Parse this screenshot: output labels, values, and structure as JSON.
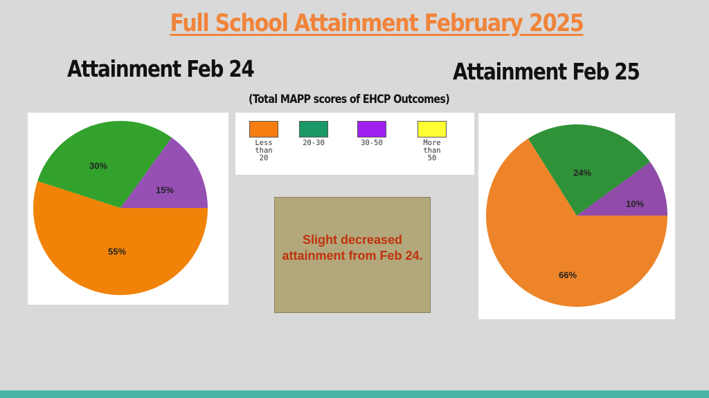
{
  "title": "Full School Attainment February 2025",
  "note": "(Total MAPP scores of EHCP Outcomes)",
  "callout": "Slight decreased attainment from Feb 24.",
  "colors": {
    "less_than_20": "#f0850a",
    "20_30": "#1a9e6a",
    "30_50": "#9b1ff2",
    "more_than_50": "#fbfb1d"
  },
  "legend": [
    {
      "label": "Less than 20",
      "color": "#f57d0f"
    },
    {
      "label": "20-30",
      "color": "#1a9966"
    },
    {
      "label": "30-50",
      "color": "#a020f0"
    },
    {
      "label": "More than 50",
      "color": "#ffff33"
    }
  ],
  "chart_data": [
    {
      "type": "pie",
      "title": "Attainment  Feb 24",
      "slices": [
        {
          "label": "55%",
          "value": 55,
          "color": "#f18308"
        },
        {
          "label": "30%",
          "value": 30,
          "color": "#32a22c"
        },
        {
          "label": "15%",
          "value": 15,
          "color": "#9650b4"
        }
      ]
    },
    {
      "type": "pie",
      "title": "Attainment Feb 25",
      "slices": [
        {
          "label": "66%",
          "value": 66,
          "color": "#ed8429"
        },
        {
          "label": "24%",
          "value": 24,
          "color": "#2f9238"
        },
        {
          "label": "10%",
          "value": 10,
          "color": "#904ca8"
        }
      ]
    }
  ]
}
